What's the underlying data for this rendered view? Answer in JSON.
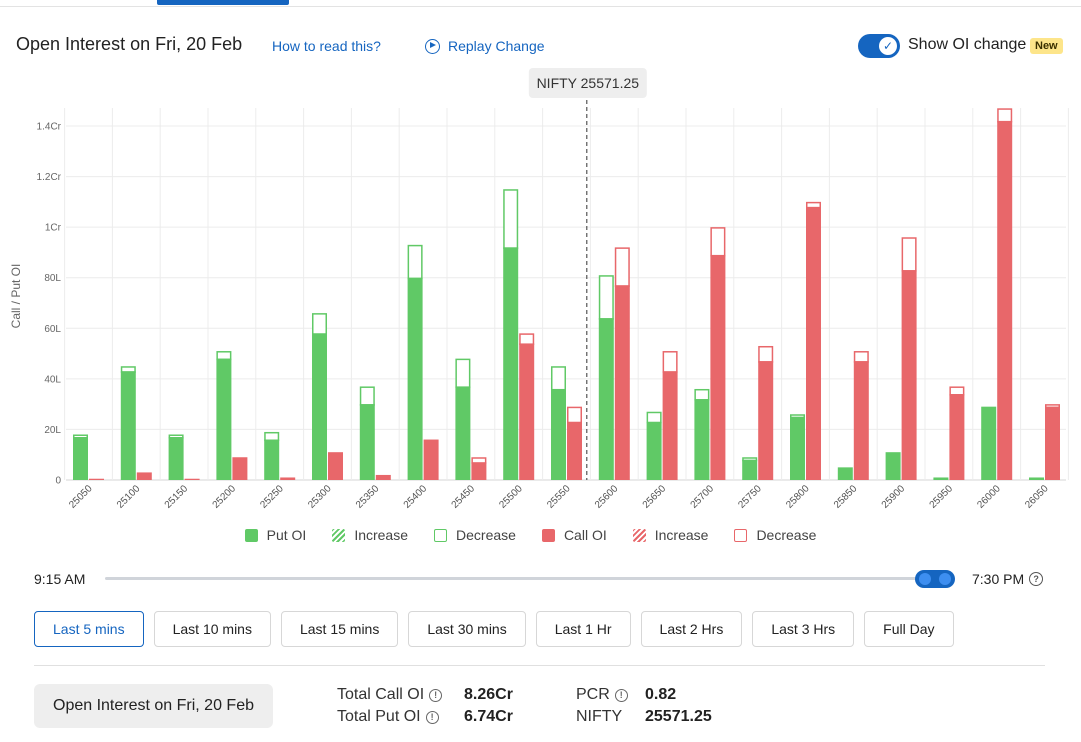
{
  "header": {
    "title": "Open Interest on Fri, 20 Feb",
    "how_to_read": "How to read this?",
    "replay": "Replay Change",
    "toggle_label": "Show OI change",
    "new_badge": "New"
  },
  "colors": {
    "put": "#60c966",
    "call": "#e8676a",
    "accent": "#1565c0"
  },
  "chart_data": {
    "type": "bar",
    "ylabel": "Call / Put OI",
    "ylim": [
      0,
      1.4
    ],
    "y_unit": "Cr",
    "y_ticks": [
      {
        "value": 0,
        "label": "0"
      },
      {
        "value": 0.2,
        "label": "20L"
      },
      {
        "value": 0.4,
        "label": "40L"
      },
      {
        "value": 0.6,
        "label": "60L"
      },
      {
        "value": 0.8,
        "label": "80L"
      },
      {
        "value": 1.0,
        "label": "1Cr"
      },
      {
        "value": 1.2,
        "label": "1.2Cr"
      },
      {
        "value": 1.4,
        "label": "1.4Cr"
      }
    ],
    "categories": [
      "25050",
      "25100",
      "25150",
      "25200",
      "25250",
      "25300",
      "25350",
      "25400",
      "25450",
      "25500",
      "25550",
      "25600",
      "25650",
      "25700",
      "25750",
      "25800",
      "25850",
      "25900",
      "25950",
      "26000",
      "26050"
    ],
    "spot_marker": {
      "label": "NIFTY 25571.25",
      "value": 25571.25
    },
    "series": [
      {
        "name": "Put OI",
        "current": [
          0.17,
          0.43,
          0.17,
          0.48,
          0.16,
          0.58,
          0.3,
          0.8,
          0.37,
          0.92,
          0.36,
          0.64,
          0.23,
          0.32,
          0.08,
          0.25,
          0.05,
          0.11,
          0.01,
          0.29,
          0.01
        ],
        "previous": [
          0.18,
          0.45,
          0.18,
          0.51,
          0.19,
          0.66,
          0.37,
          0.93,
          0.48,
          1.15,
          0.45,
          0.81,
          0.27,
          0.36,
          0.09,
          0.26,
          0.05,
          0.11,
          0.01,
          0.29,
          0.01
        ]
      },
      {
        "name": "Call OI",
        "current": [
          0.005,
          0.03,
          0.005,
          0.09,
          0.01,
          0.11,
          0.02,
          0.16,
          0.07,
          0.54,
          0.23,
          0.77,
          0.43,
          0.89,
          0.47,
          1.08,
          0.47,
          0.83,
          0.34,
          1.42,
          0.29
        ],
        "previous": [
          0.005,
          0.03,
          0.005,
          0.09,
          0.01,
          0.11,
          0.02,
          0.16,
          0.09,
          0.58,
          0.29,
          0.92,
          0.51,
          1.0,
          0.53,
          1.1,
          0.51,
          0.96,
          0.37,
          1.47,
          0.3
        ]
      }
    ],
    "legend": [
      "Put OI",
      "Increase",
      "Decrease",
      "Call OI",
      "Increase",
      "Decrease"
    ]
  },
  "timeline": {
    "start": "9:15 AM",
    "end": "7:30 PM"
  },
  "periods": [
    "Last 5 mins",
    "Last 10 mins",
    "Last 15 mins",
    "Last 30 mins",
    "Last 1 Hr",
    "Last 2 Hrs",
    "Last 3 Hrs",
    "Full Day"
  ],
  "summary": {
    "button": "Open Interest on Fri, 20 Feb",
    "total_call_label": "Total Call OI",
    "total_call_value": "8.26Cr",
    "total_put_label": "Total Put OI",
    "total_put_value": "6.74Cr",
    "pcr_label": "PCR",
    "pcr_value": "0.82",
    "nifty_label": "NIFTY",
    "nifty_value": "25571.25"
  }
}
